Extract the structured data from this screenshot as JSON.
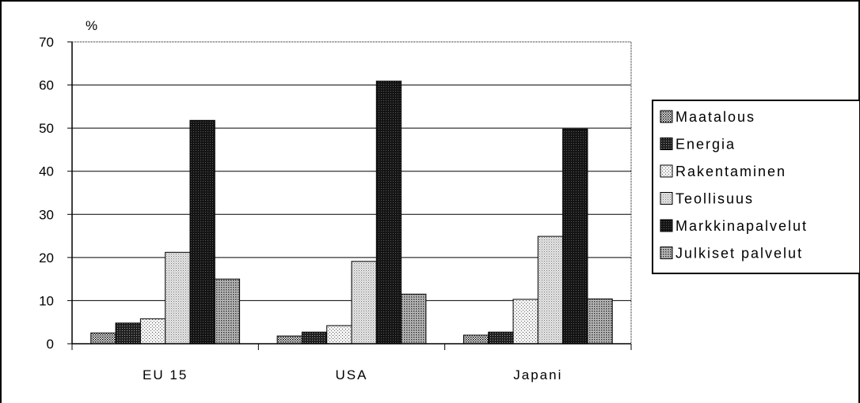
{
  "chart_data": {
    "type": "bar",
    "ylabel": "%",
    "ylim": [
      0,
      70
    ],
    "yticks": [
      0,
      10,
      20,
      30,
      40,
      50,
      60,
      70
    ],
    "categories": [
      "EU 15",
      "USA",
      "Japani"
    ],
    "series": [
      {
        "name": "Maatalous",
        "values": [
          2.5,
          1.8,
          2.0
        ],
        "pattern": "dots-light"
      },
      {
        "name": "Energia",
        "values": [
          4.8,
          2.7,
          2.7
        ],
        "pattern": "dots-dark"
      },
      {
        "name": "Rakentaminen",
        "values": [
          5.8,
          4.2,
          10.3
        ],
        "pattern": "dots-sparse"
      },
      {
        "name": "Teollisuus",
        "values": [
          21.2,
          19.1,
          24.9
        ],
        "pattern": "dots-fine"
      },
      {
        "name": "Markkinapalvelut",
        "values": [
          51.8,
          60.9,
          49.8
        ],
        "pattern": "dots-black"
      },
      {
        "name": "Julkiset palvelut",
        "values": [
          15.0,
          11.5,
          10.4
        ],
        "pattern": "dots-medium"
      }
    ],
    "grid": true,
    "legend": "right"
  }
}
